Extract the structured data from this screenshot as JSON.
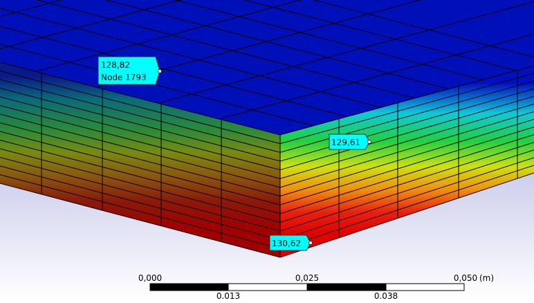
{
  "probes": [
    {
      "value": "128,82",
      "node": "Node 1793"
    },
    {
      "value": "129,61"
    },
    {
      "value": "130,62"
    }
  ],
  "scale_bar": {
    "top_labels": [
      "0,000",
      "0,025",
      "0,050"
    ],
    "unit": "(m)",
    "bottom_labels": [
      "0.013",
      "0.038"
    ]
  }
}
